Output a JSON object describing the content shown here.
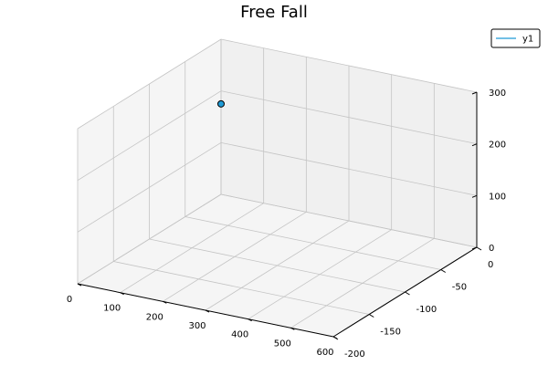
{
  "chart_data": {
    "type": "scatter",
    "title": "Free Fall",
    "projection": "3d",
    "grid": true,
    "legend_position": "top-right",
    "series": [
      {
        "name": "y1",
        "color": "#1f9bd6",
        "points": [
          {
            "x": 0,
            "y": 0,
            "z": 175
          }
        ]
      }
    ],
    "axes": {
      "x": {
        "range": [
          0,
          600
        ],
        "ticks": [
          0,
          100,
          200,
          300,
          400,
          500,
          600
        ],
        "tick_labels": [
          "0",
          "100",
          "200",
          "300",
          "400",
          "500",
          "600"
        ]
      },
      "y": {
        "range": [
          -200,
          0
        ],
        "ticks": [
          0,
          -50,
          -100,
          -150,
          -200
        ],
        "tick_labels": [
          "0",
          "-50",
          "-100",
          "-150",
          "-200"
        ]
      },
      "z": {
        "range": [
          0,
          300
        ],
        "ticks": [
          0,
          100,
          200,
          300
        ],
        "tick_labels": [
          "0",
          "100",
          "200",
          "300"
        ]
      }
    }
  }
}
